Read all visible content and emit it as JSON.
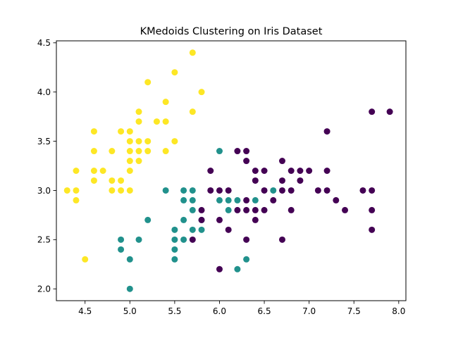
{
  "chart_data": {
    "type": "scatter",
    "title": "KMedoids Clustering on Iris Dataset",
    "xlabel": "",
    "ylabel": "",
    "xlim": [
      4.18,
      8.08
    ],
    "ylim": [
      1.88,
      4.52
    ],
    "xticks": [
      4.5,
      5.0,
      5.5,
      6.0,
      6.5,
      7.0,
      7.5,
      8.0
    ],
    "xtick_labels": [
      "4.5",
      "5.0",
      "5.5",
      "6.0",
      "6.5",
      "7.0",
      "7.5",
      "8.0"
    ],
    "yticks": [
      2.0,
      2.5,
      3.0,
      3.5,
      4.0,
      4.5
    ],
    "ytick_labels": [
      "2.0",
      "2.5",
      "3.0",
      "3.5",
      "4.0",
      "4.5"
    ],
    "grid": false,
    "series": [
      {
        "color": "#fde725",
        "points": [
          [
            4.3,
            3.0
          ],
          [
            4.4,
            3.0
          ],
          [
            4.4,
            2.9
          ],
          [
            4.4,
            3.2
          ],
          [
            4.5,
            2.3
          ],
          [
            4.6,
            3.6
          ],
          [
            4.6,
            3.4
          ],
          [
            4.6,
            3.2
          ],
          [
            4.6,
            3.1
          ],
          [
            4.7,
            3.2
          ],
          [
            4.8,
            3.4
          ],
          [
            4.8,
            3.1
          ],
          [
            4.8,
            3.0
          ],
          [
            4.9,
            3.6
          ],
          [
            4.9,
            3.1
          ],
          [
            4.9,
            3.0
          ],
          [
            5.0,
            3.6
          ],
          [
            5.0,
            3.5
          ],
          [
            5.0,
            3.4
          ],
          [
            5.0,
            3.3
          ],
          [
            5.0,
            3.2
          ],
          [
            5.0,
            3.0
          ],
          [
            5.1,
            3.8
          ],
          [
            5.1,
            3.7
          ],
          [
            5.1,
            3.5
          ],
          [
            5.1,
            3.4
          ],
          [
            5.1,
            3.3
          ],
          [
            5.2,
            4.1
          ],
          [
            5.2,
            3.5
          ],
          [
            5.2,
            3.4
          ],
          [
            5.3,
            3.7
          ],
          [
            5.4,
            3.9
          ],
          [
            5.4,
            3.7
          ],
          [
            5.4,
            3.4
          ],
          [
            5.5,
            4.2
          ],
          [
            5.5,
            3.5
          ],
          [
            5.7,
            4.4
          ],
          [
            5.7,
            3.8
          ],
          [
            5.8,
            4.0
          ]
        ]
      },
      {
        "color": "#21918c",
        "points": [
          [
            4.9,
            2.5
          ],
          [
            4.9,
            2.4
          ],
          [
            5.0,
            2.3
          ],
          [
            5.0,
            2.0
          ],
          [
            5.1,
            2.5
          ],
          [
            5.2,
            2.7
          ],
          [
            5.4,
            3.0
          ],
          [
            5.5,
            2.6
          ],
          [
            5.5,
            2.5
          ],
          [
            5.5,
            2.4
          ],
          [
            5.5,
            2.3
          ],
          [
            5.6,
            3.0
          ],
          [
            5.6,
            2.9
          ],
          [
            5.6,
            2.7
          ],
          [
            5.6,
            2.5
          ],
          [
            5.7,
            3.0
          ],
          [
            5.7,
            2.9
          ],
          [
            5.7,
            2.8
          ],
          [
            5.7,
            2.6
          ],
          [
            5.8,
            2.7
          ],
          [
            5.8,
            2.6
          ],
          [
            6.0,
            3.4
          ],
          [
            6.0,
            2.9
          ],
          [
            6.1,
            2.9
          ],
          [
            6.1,
            2.8
          ],
          [
            6.2,
            2.9
          ],
          [
            6.2,
            2.2
          ],
          [
            6.3,
            2.3
          ],
          [
            6.4,
            2.9
          ],
          [
            6.6,
            3.0
          ]
        ]
      },
      {
        "color": "#440154",
        "points": [
          [
            5.7,
            2.5
          ],
          [
            5.8,
            2.8
          ],
          [
            5.8,
            2.7
          ],
          [
            5.9,
            3.2
          ],
          [
            5.9,
            3.0
          ],
          [
            6.0,
            3.0
          ],
          [
            6.0,
            2.7
          ],
          [
            6.0,
            2.2
          ],
          [
            6.1,
            3.0
          ],
          [
            6.1,
            2.6
          ],
          [
            6.2,
            3.4
          ],
          [
            6.2,
            2.8
          ],
          [
            6.3,
            3.4
          ],
          [
            6.3,
            3.3
          ],
          [
            6.3,
            2.9
          ],
          [
            6.3,
            2.8
          ],
          [
            6.3,
            2.5
          ],
          [
            6.4,
            3.2
          ],
          [
            6.4,
            3.1
          ],
          [
            6.4,
            2.8
          ],
          [
            6.4,
            2.7
          ],
          [
            6.5,
            3.2
          ],
          [
            6.5,
            3.0
          ],
          [
            6.5,
            2.8
          ],
          [
            6.6,
            2.9
          ],
          [
            6.7,
            3.3
          ],
          [
            6.7,
            3.1
          ],
          [
            6.7,
            3.0
          ],
          [
            6.7,
            2.5
          ],
          [
            6.8,
            3.2
          ],
          [
            6.8,
            3.0
          ],
          [
            6.8,
            2.8
          ],
          [
            6.9,
            3.2
          ],
          [
            6.9,
            3.1
          ],
          [
            7.0,
            3.2
          ],
          [
            7.1,
            3.0
          ],
          [
            7.2,
            3.6
          ],
          [
            7.2,
            3.2
          ],
          [
            7.2,
            3.0
          ],
          [
            7.3,
            2.9
          ],
          [
            7.4,
            2.8
          ],
          [
            7.6,
            3.0
          ],
          [
            7.7,
            3.8
          ],
          [
            7.7,
            3.0
          ],
          [
            7.7,
            2.8
          ],
          [
            7.7,
            2.6
          ],
          [
            7.9,
            3.8
          ]
        ]
      }
    ]
  }
}
